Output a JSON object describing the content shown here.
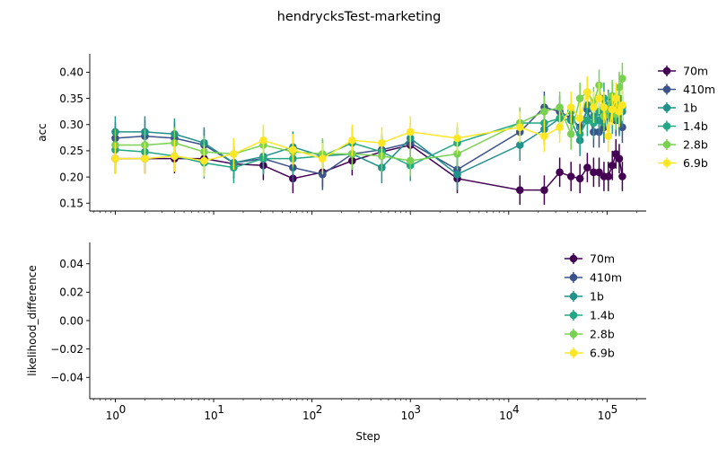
{
  "chart_data": {
    "type": "line",
    "title": "hendrycksTest-marketing",
    "xlabel": "Step",
    "xscale": "log",
    "xlim": [
      0.55,
      250000
    ],
    "xticks": [
      {
        "value": 1,
        "label": "10",
        "exp": "0"
      },
      {
        "value": 10,
        "label": "10",
        "exp": "1"
      },
      {
        "value": 100,
        "label": "10",
        "exp": "2"
      },
      {
        "value": 1000,
        "label": "10",
        "exp": "3"
      },
      {
        "value": 10000,
        "label": "10",
        "exp": "4"
      },
      {
        "value": 100000,
        "label": "10",
        "exp": "5"
      }
    ],
    "x": [
      1,
      2,
      4,
      8,
      16,
      32,
      64,
      128,
      256,
      512,
      1000,
      3000,
      13000,
      23000,
      33000,
      43000,
      53000,
      63000,
      73000,
      83000,
      93000,
      103000,
      113000,
      123000,
      133000,
      143000
    ],
    "panels": [
      {
        "ylabel": "acc",
        "ylim": [
          0.135,
          0.435
        ],
        "yticks": [
          "0.15",
          "0.20",
          "0.25",
          "0.30",
          "0.35",
          "0.40"
        ],
        "ytick_values": [
          0.15,
          0.2,
          0.25,
          0.3,
          0.35,
          0.4
        ],
        "legend_position": "right",
        "series": [
          {
            "name": "70m",
            "color": "#440154",
            "values": [
              0.235,
              0.235,
              0.235,
              0.235,
              0.225,
              0.222,
              0.197,
              0.209,
              0.231,
              0.248,
              0.261,
              0.197,
              0.175,
              0.175,
              0.209,
              0.201,
              0.197,
              0.218,
              0.209,
              0.209,
              0.201,
              0.201,
              0.222,
              0.244,
              0.235,
              0.201
            ],
            "err": 0.028
          },
          {
            "name": "410m",
            "color": "#3b528b",
            "values": [
              0.274,
              0.278,
              0.274,
              0.261,
              0.227,
              0.235,
              0.218,
              0.205,
              0.244,
              0.252,
              0.265,
              0.214,
              0.286,
              0.333,
              0.325,
              0.312,
              0.295,
              0.329,
              0.286,
              0.286,
              0.295,
              0.312,
              0.333,
              0.308,
              0.312,
              0.295
            ],
            "err": 0.03
          },
          {
            "name": "1b",
            "color": "#21918c",
            "values": [
              0.286,
              0.286,
              0.282,
              0.265,
              0.227,
              0.239,
              0.257,
              0.24,
              0.244,
              0.218,
              0.274,
              0.205,
              0.261,
              0.291,
              0.312,
              0.308,
              0.27,
              0.337,
              0.316,
              0.308,
              0.303,
              0.325,
              0.35,
              0.333,
              0.308,
              0.325
            ],
            "err": 0.03
          },
          {
            "name": "1.4b",
            "color": "#22a884",
            "values": [
              0.252,
              0.248,
              0.24,
              0.227,
              0.218,
              0.235,
              0.235,
              0.24,
              0.265,
              0.248,
              0.222,
              0.265,
              0.303,
              0.303,
              0.312,
              0.325,
              0.282,
              0.308,
              0.303,
              0.325,
              0.35,
              0.337,
              0.312,
              0.32,
              0.35,
              0.333
            ],
            "err": 0.03
          },
          {
            "name": "2.8b",
            "color": "#7ad151",
            "values": [
              0.261,
              0.261,
              0.265,
              0.248,
              0.244,
              0.261,
              0.248,
              0.244,
              0.244,
              0.24,
              0.231,
              0.244,
              0.303,
              0.325,
              0.333,
              0.282,
              0.35,
              0.362,
              0.342,
              0.375,
              0.316,
              0.329,
              0.355,
              0.32,
              0.371,
              0.388
            ],
            "err": 0.03
          },
          {
            "name": "6.9b",
            "color": "#fde725",
            "values": [
              0.235,
              0.235,
              0.24,
              0.231,
              0.244,
              0.27,
              0.252,
              0.235,
              0.27,
              0.265,
              0.286,
              0.274,
              0.295,
              0.278,
              0.295,
              0.333,
              0.312,
              0.362,
              0.333,
              0.35,
              0.333,
              0.278,
              0.329,
              0.35,
              0.325,
              0.337
            ],
            "err": 0.03
          }
        ]
      },
      {
        "ylabel": "likelihood_difference",
        "ylim": [
          -0.055,
          0.055
        ],
        "yticks": [
          "−0.04",
          "−0.02",
          "0.00",
          "0.02",
          "0.04"
        ],
        "ytick_values": [
          -0.04,
          -0.02,
          0.0,
          0.02,
          0.04
        ],
        "legend_position": "upper right",
        "series": [
          {
            "name": "70m",
            "color": "#440154"
          },
          {
            "name": "410m",
            "color": "#3b528b"
          },
          {
            "name": "1b",
            "color": "#21918c"
          },
          {
            "name": "1.4b",
            "color": "#22a884"
          },
          {
            "name": "2.8b",
            "color": "#7ad151"
          },
          {
            "name": "6.9b",
            "color": "#fde725"
          }
        ]
      }
    ]
  }
}
